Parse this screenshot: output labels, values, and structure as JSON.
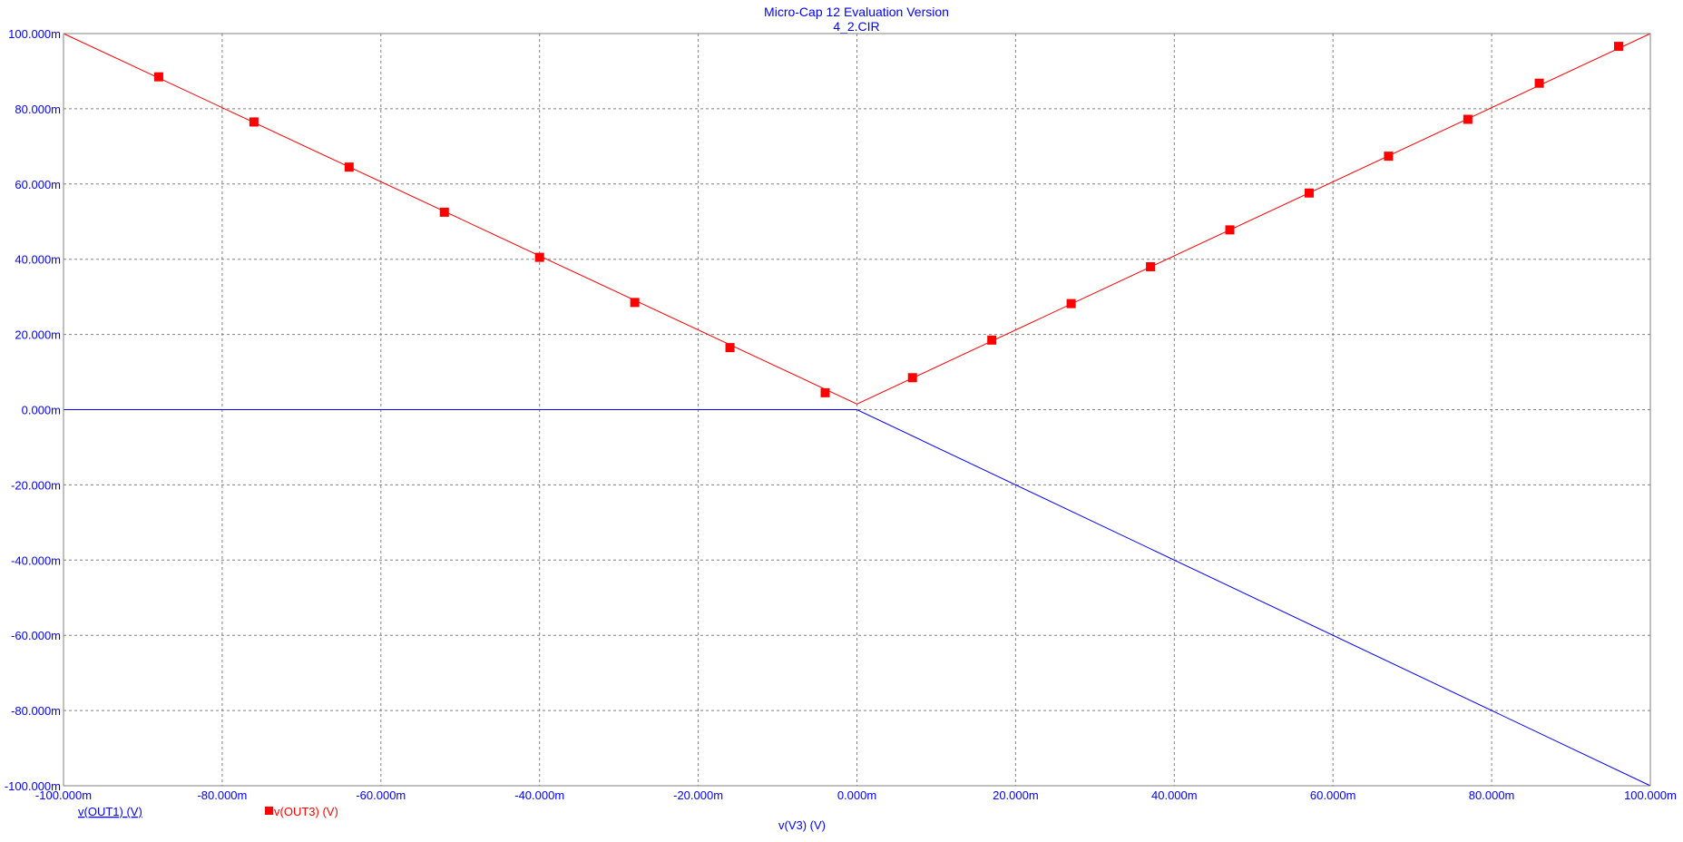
{
  "window": {
    "title": "Micro-Cap 12 Evaluation Version",
    "subtitle": "4_2.CIR"
  },
  "colors": {
    "axis_text": "#0000ff",
    "grid": "#808080",
    "frame": "#808080",
    "out1": "#0000ff",
    "out3": "#ff0000"
  },
  "chart_data": {
    "type": "line",
    "title": "Micro-Cap 12 Evaluation Version",
    "subtitle": "4_2.CIR",
    "xlabel": "v(V3) (V)",
    "ylabel": "",
    "xlim": [
      -100,
      100
    ],
    "ylim": [
      -100,
      100
    ],
    "x_unit": "m",
    "y_unit": "m",
    "grid": true,
    "x_ticks": [
      -100,
      -80,
      -60,
      -40,
      -20,
      0,
      20,
      40,
      60,
      80,
      100
    ],
    "y_ticks": [
      100,
      80,
      60,
      40,
      20,
      0,
      -20,
      -40,
      -60,
      -80,
      -100
    ],
    "x_tick_labels": [
      "-100.000m",
      "-80.000m",
      "-60.000m",
      "-40.000m",
      "-20.000m",
      "0.000m",
      "20.000m",
      "40.000m",
      "60.000m",
      "80.000m",
      "100.000m"
    ],
    "y_tick_labels": [
      "100.000m",
      "80.000m",
      "60.000m",
      "40.000m",
      "20.000m",
      "0.000m",
      "-20.000m",
      "-40.000m",
      "-60.000m",
      "-80.000m",
      "-100.000m"
    ],
    "legend_placement": "bottom-left",
    "series": [
      {
        "name": "v(OUT1) (V)",
        "color": "#0000ff",
        "marker": "none",
        "x": [
          -100,
          0,
          100
        ],
        "y": [
          0,
          0,
          -100
        ]
      },
      {
        "name": "v(OUT3) (V)",
        "color": "#ff0000",
        "marker": "square",
        "x": [
          -100,
          0,
          100
        ],
        "y": [
          100,
          1.5,
          100
        ],
        "marker_x": [
          -88,
          -76,
          -64,
          -52,
          -40,
          -28,
          -16,
          -4,
          7,
          17,
          27,
          37,
          47,
          57,
          67,
          77,
          86,
          96
        ],
        "marker_y": [
          88.5,
          76.5,
          64.5,
          52.5,
          40.5,
          28.5,
          16.5,
          4.5,
          8.5,
          18.5,
          28.2,
          38.0,
          47.8,
          57.6,
          67.4,
          77.2,
          86.8,
          96.6
        ]
      }
    ]
  }
}
